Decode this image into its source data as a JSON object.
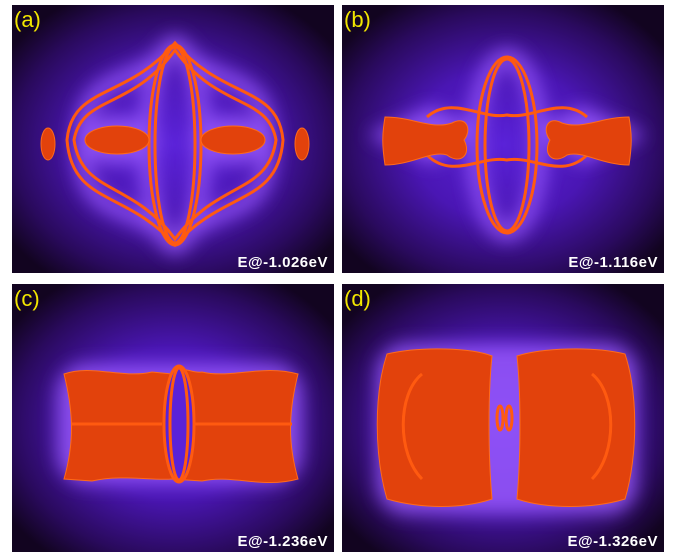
{
  "panels": [
    {
      "label": "(a)",
      "energy": "E@-1.026eV"
    },
    {
      "label": "(b)",
      "energy": "E@-1.116eV"
    },
    {
      "label": "(c)",
      "energy": "E@-1.236eV"
    },
    {
      "label": "(d)",
      "energy": "E@-1.326eV"
    }
  ]
}
